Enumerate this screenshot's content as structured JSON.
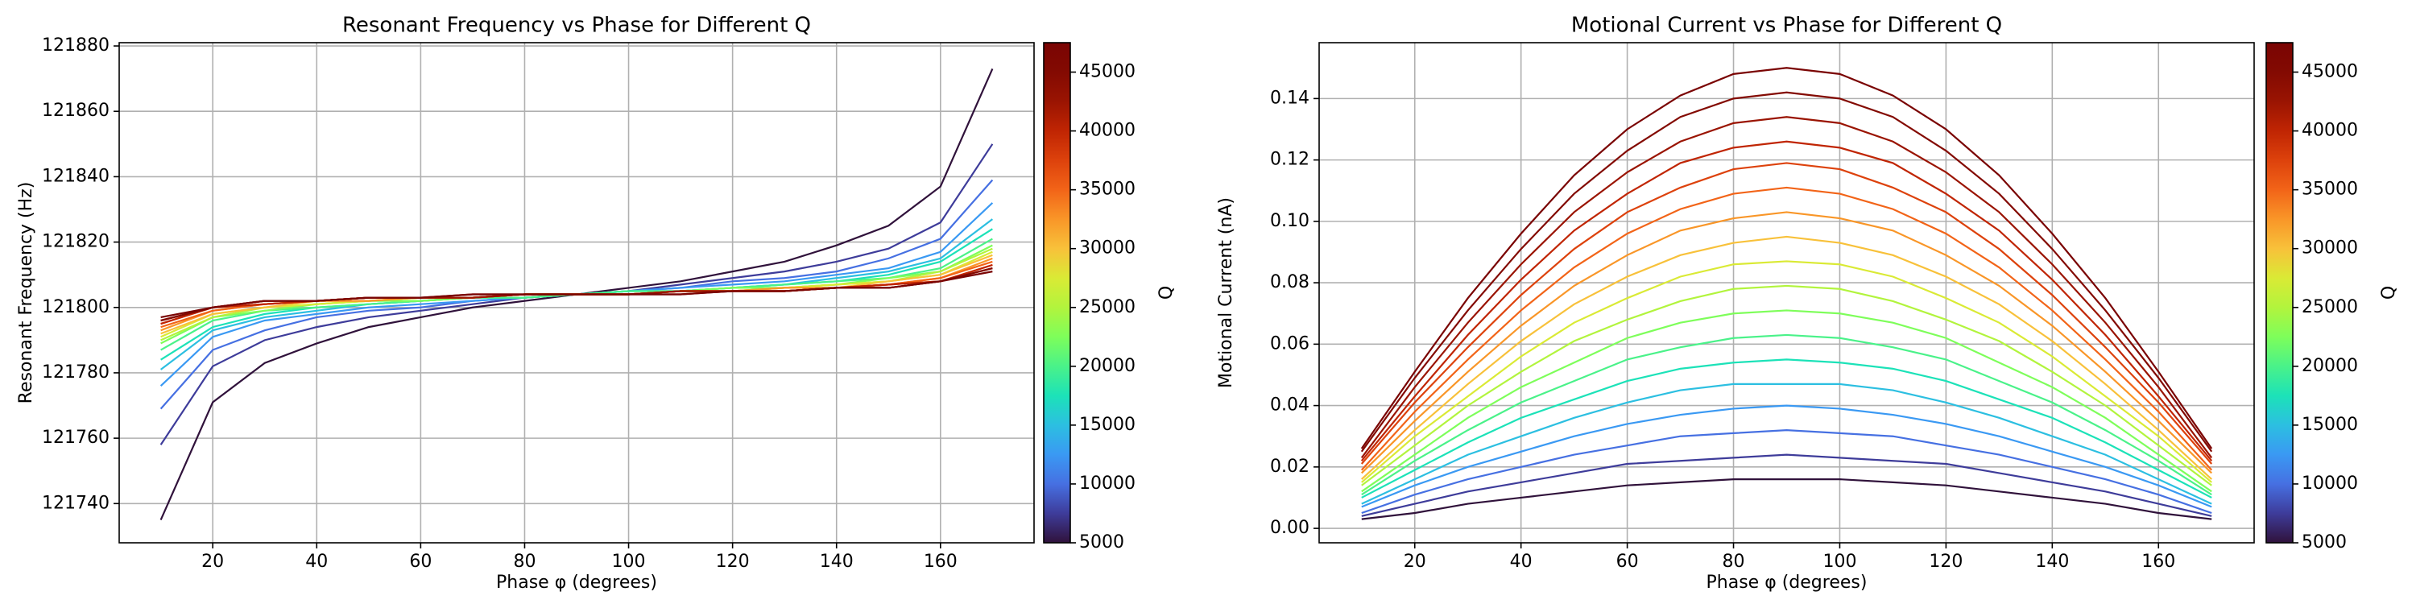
{
  "chart_data": [
    {
      "type": "line",
      "title": "Resonant Frequency vs Phase for Different Q",
      "x_label": "Phase φ (degrees)",
      "y_label": "Resonant Frequency (Hz)",
      "x": [
        10,
        20,
        30,
        40,
        50,
        60,
        70,
        80,
        90,
        100,
        110,
        120,
        130,
        140,
        150,
        160,
        170
      ],
      "xlim": [
        2,
        178
      ],
      "xticks": [
        20,
        40,
        60,
        80,
        100,
        120,
        140,
        160
      ],
      "ylim": [
        121728,
        121881
      ],
      "yticks": [
        121740,
        121760,
        121780,
        121800,
        121820,
        121840,
        121860,
        121880
      ],
      "grid": true,
      "colorbar": {
        "label": "Q",
        "lim": [
          5000,
          47500
        ],
        "ticks": [
          5000,
          10000,
          15000,
          20000,
          25000,
          30000,
          35000,
          40000,
          45000
        ]
      },
      "series": [
        {
          "color": "#30123b",
          "values": [
            121735,
            121771,
            121783,
            121789,
            121794,
            121797,
            121800,
            121802,
            121804,
            121806,
            121808,
            121811,
            121814,
            121819,
            121825,
            121837,
            121873
          ]
        },
        {
          "color": "#3e3c9a",
          "values": [
            121758,
            121782,
            121790,
            121794,
            121797,
            121799,
            121801,
            121803,
            121804,
            121805,
            121807,
            121809,
            121811,
            121814,
            121818,
            121826,
            121850
          ]
        },
        {
          "color": "#4670e2",
          "values": [
            121769,
            121787,
            121793,
            121797,
            121799,
            121800,
            121802,
            121803,
            121804,
            121805,
            121806,
            121808,
            121809,
            121811,
            121815,
            121821,
            121839
          ]
        },
        {
          "color": "#3a99f3",
          "values": [
            121776,
            121791,
            121796,
            121798,
            121800,
            121801,
            121802,
            121803,
            121804,
            121805,
            121806,
            121807,
            121808,
            121810,
            121812,
            121817,
            121832
          ]
        },
        {
          "color": "#2cbfe1",
          "values": [
            121781,
            121793,
            121797,
            121799,
            121801,
            121802,
            121803,
            121803,
            121804,
            121805,
            121805,
            121806,
            121807,
            121809,
            121811,
            121815,
            121827
          ]
        },
        {
          "color": "#1ce2b8",
          "values": [
            121784,
            121794,
            121798,
            121800,
            121801,
            121802,
            121803,
            121803,
            121804,
            121805,
            121805,
            121806,
            121807,
            121808,
            121810,
            121814,
            121824
          ]
        },
        {
          "color": "#4af289",
          "values": [
            121787,
            121796,
            121799,
            121800,
            121801,
            121802,
            121803,
            121803,
            121804,
            121805,
            121805,
            121806,
            121807,
            121808,
            121809,
            121812,
            121821
          ]
        },
        {
          "color": "#7efe5a",
          "values": [
            121789,
            121797,
            121799,
            121801,
            121802,
            121802,
            121803,
            121804,
            121804,
            121804,
            121805,
            121806,
            121806,
            121807,
            121809,
            121811,
            121819
          ]
        },
        {
          "color": "#b2f43d",
          "values": [
            121790,
            121797,
            121800,
            121801,
            121802,
            121803,
            121803,
            121804,
            121804,
            121804,
            121805,
            121805,
            121806,
            121807,
            121808,
            121811,
            121818
          ]
        },
        {
          "color": "#daea35",
          "values": [
            121791,
            121798,
            121800,
            121801,
            121802,
            121803,
            121803,
            121804,
            121804,
            121804,
            121805,
            121805,
            121806,
            121807,
            121808,
            121810,
            121817
          ]
        },
        {
          "color": "#f8c13a",
          "values": [
            121792,
            121798,
            121800,
            121802,
            121802,
            121803,
            121803,
            121804,
            121804,
            121804,
            121805,
            121805,
            121806,
            121806,
            121808,
            121810,
            121816
          ]
        },
        {
          "color": "#f99628",
          "values": [
            121793,
            121799,
            121801,
            121802,
            121802,
            121803,
            121803,
            121804,
            121804,
            121804,
            121805,
            121805,
            121806,
            121806,
            121807,
            121809,
            121815
          ]
        },
        {
          "color": "#f26418",
          "values": [
            121794,
            121799,
            121801,
            121802,
            121803,
            121803,
            121803,
            121804,
            121804,
            121804,
            121805,
            121805,
            121805,
            121806,
            121807,
            121809,
            121814
          ]
        },
        {
          "color": "#dd420c",
          "values": [
            121795,
            121800,
            121801,
            121802,
            121803,
            121803,
            121803,
            121804,
            121804,
            121804,
            121805,
            121805,
            121805,
            121806,
            121807,
            121808,
            121813
          ]
        },
        {
          "color": "#c02503",
          "values": [
            121795,
            121800,
            121801,
            121802,
            121803,
            121803,
            121803,
            121804,
            121804,
            121804,
            121805,
            121805,
            121805,
            121806,
            121807,
            121808,
            121813
          ]
        },
        {
          "color": "#9a1402",
          "values": [
            121796,
            121800,
            121802,
            121802,
            121803,
            121803,
            121803,
            121804,
            121804,
            121804,
            121805,
            121805,
            121805,
            121806,
            121806,
            121808,
            121812
          ]
        },
        {
          "color": "#830a02",
          "values": [
            121796,
            121800,
            121802,
            121802,
            121803,
            121803,
            121804,
            121804,
            121804,
            121804,
            121804,
            121805,
            121805,
            121806,
            121806,
            121808,
            121812
          ]
        },
        {
          "color": "#7a0403",
          "values": [
            121797,
            121800,
            121802,
            121802,
            121803,
            121803,
            121804,
            121804,
            121804,
            121804,
            121804,
            121805,
            121805,
            121806,
            121806,
            121808,
            121811
          ]
        }
      ]
    },
    {
      "type": "line",
      "title": "Motional Current vs Phase for Different Q",
      "x_label": "Phase φ (degrees)",
      "y_label": "Motional Current (nA)",
      "x": [
        10,
        20,
        30,
        40,
        50,
        60,
        70,
        80,
        90,
        100,
        110,
        120,
        130,
        140,
        150,
        160,
        170
      ],
      "xlim": [
        2,
        178
      ],
      "xticks": [
        20,
        40,
        60,
        80,
        100,
        120,
        140,
        160
      ],
      "ylim": [
        -0.0047,
        0.1582
      ],
      "yticks": [
        {
          "value": 0,
          "label": "0.00"
        },
        0.02,
        0.04,
        0.06,
        0.08,
        {
          "value": 0.1,
          "label": "0.10"
        },
        0.12,
        0.14
      ],
      "grid": true,
      "colorbar": {
        "label": "Q",
        "lim": [
          5000,
          47500
        ],
        "ticks": [
          5000,
          10000,
          15000,
          20000,
          25000,
          30000,
          35000,
          40000,
          45000
        ]
      },
      "series": [
        {
          "color": "#30123b",
          "values": [
            0.003,
            0.005,
            0.008,
            0.01,
            0.012,
            0.014,
            0.015,
            0.016,
            0.016,
            0.016,
            0.015,
            0.014,
            0.012,
            0.01,
            0.008,
            0.005,
            0.003
          ]
        },
        {
          "color": "#3e3c9a",
          "values": [
            0.004,
            0.008,
            0.012,
            0.015,
            0.018,
            0.021,
            0.022,
            0.023,
            0.024,
            0.023,
            0.022,
            0.021,
            0.018,
            0.015,
            0.012,
            0.008,
            0.004
          ]
        },
        {
          "color": "#4670e2",
          "values": [
            0.005,
            0.011,
            0.016,
            0.02,
            0.024,
            0.027,
            0.03,
            0.031,
            0.032,
            0.031,
            0.03,
            0.027,
            0.024,
            0.02,
            0.016,
            0.011,
            0.005
          ]
        },
        {
          "color": "#3a99f3",
          "values": [
            0.007,
            0.014,
            0.02,
            0.025,
            0.03,
            0.034,
            0.037,
            0.039,
            0.04,
            0.039,
            0.037,
            0.034,
            0.03,
            0.025,
            0.02,
            0.014,
            0.007
          ]
        },
        {
          "color": "#2cbfe1",
          "values": [
            0.008,
            0.016,
            0.024,
            0.03,
            0.036,
            0.041,
            0.045,
            0.047,
            0.047,
            0.047,
            0.045,
            0.041,
            0.036,
            0.03,
            0.024,
            0.016,
            0.008
          ]
        },
        {
          "color": "#1ce2b8",
          "values": [
            0.01,
            0.019,
            0.028,
            0.036,
            0.042,
            0.048,
            0.052,
            0.054,
            0.055,
            0.054,
            0.052,
            0.048,
            0.042,
            0.036,
            0.028,
            0.019,
            0.01
          ]
        },
        {
          "color": "#4af289",
          "values": [
            0.011,
            0.022,
            0.032,
            0.041,
            0.048,
            0.055,
            0.059,
            0.062,
            0.063,
            0.062,
            0.059,
            0.055,
            0.048,
            0.041,
            0.032,
            0.022,
            0.011
          ]
        },
        {
          "color": "#7efe5a",
          "values": [
            0.012,
            0.024,
            0.036,
            0.046,
            0.054,
            0.062,
            0.067,
            0.07,
            0.071,
            0.07,
            0.067,
            0.062,
            0.054,
            0.046,
            0.036,
            0.024,
            0.012
          ]
        },
        {
          "color": "#b2f43d",
          "values": [
            0.014,
            0.027,
            0.04,
            0.051,
            0.061,
            0.068,
            0.074,
            0.078,
            0.079,
            0.078,
            0.074,
            0.068,
            0.061,
            0.051,
            0.04,
            0.027,
            0.014
          ]
        },
        {
          "color": "#daea35",
          "values": [
            0.015,
            0.03,
            0.043,
            0.056,
            0.067,
            0.075,
            0.082,
            0.086,
            0.087,
            0.086,
            0.082,
            0.075,
            0.067,
            0.056,
            0.043,
            0.03,
            0.015
          ]
        },
        {
          "color": "#f8c13a",
          "values": [
            0.016,
            0.032,
            0.047,
            0.061,
            0.073,
            0.082,
            0.089,
            0.093,
            0.095,
            0.093,
            0.089,
            0.082,
            0.073,
            0.061,
            0.047,
            0.032,
            0.016
          ]
        },
        {
          "color": "#f99628",
          "values": [
            0.018,
            0.035,
            0.051,
            0.066,
            0.079,
            0.089,
            0.097,
            0.101,
            0.103,
            0.101,
            0.097,
            0.089,
            0.079,
            0.066,
            0.051,
            0.035,
            0.018
          ]
        },
        {
          "color": "#f26418",
          "values": [
            0.019,
            0.038,
            0.055,
            0.071,
            0.085,
            0.096,
            0.104,
            0.109,
            0.111,
            0.109,
            0.104,
            0.096,
            0.085,
            0.071,
            0.055,
            0.038,
            0.019
          ]
        },
        {
          "color": "#dd420c",
          "values": [
            0.021,
            0.041,
            0.059,
            0.076,
            0.091,
            0.103,
            0.111,
            0.117,
            0.119,
            0.117,
            0.111,
            0.103,
            0.091,
            0.076,
            0.059,
            0.041,
            0.021
          ]
        },
        {
          "color": "#c02503",
          "values": [
            0.022,
            0.043,
            0.063,
            0.081,
            0.097,
            0.109,
            0.119,
            0.124,
            0.126,
            0.124,
            0.119,
            0.109,
            0.097,
            0.081,
            0.063,
            0.043,
            0.022
          ]
        },
        {
          "color": "#9a1402",
          "values": [
            0.023,
            0.046,
            0.067,
            0.086,
            0.103,
            0.116,
            0.126,
            0.132,
            0.134,
            0.132,
            0.126,
            0.116,
            0.103,
            0.086,
            0.067,
            0.046,
            0.023
          ]
        },
        {
          "color": "#830a02",
          "values": [
            0.025,
            0.049,
            0.071,
            0.091,
            0.109,
            0.123,
            0.134,
            0.14,
            0.142,
            0.14,
            0.134,
            0.123,
            0.109,
            0.091,
            0.071,
            0.049,
            0.025
          ]
        },
        {
          "color": "#7a0403",
          "values": [
            0.026,
            0.051,
            0.075,
            0.096,
            0.115,
            0.13,
            0.141,
            0.148,
            0.15,
            0.148,
            0.141,
            0.13,
            0.115,
            0.096,
            0.075,
            0.051,
            0.026
          ]
        }
      ]
    }
  ]
}
